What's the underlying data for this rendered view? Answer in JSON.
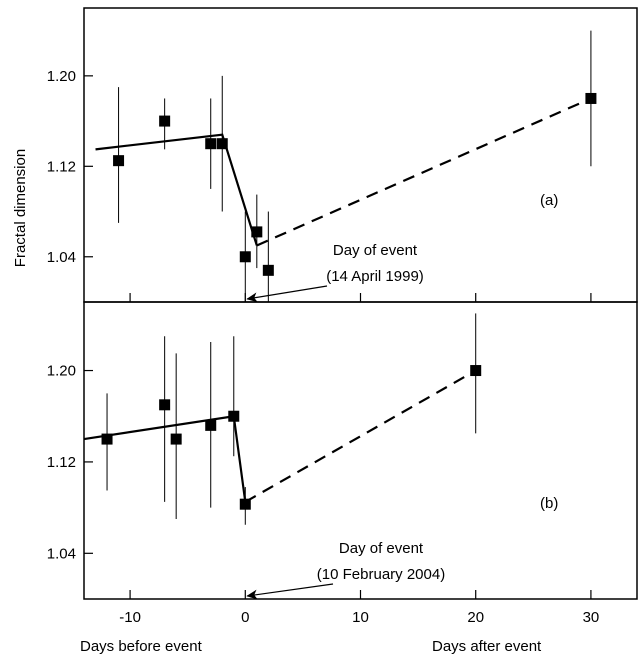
{
  "chart_data": [
    {
      "type": "scatter",
      "panel_label": "(a)",
      "xlim": [
        -14,
        34
      ],
      "ylim": [
        1.0,
        1.26
      ],
      "yticks": [
        1.04,
        1.12,
        1.2
      ],
      "yticklabels": [
        "1.04",
        "1.12",
        "1.20"
      ],
      "points": [
        {
          "x": -11,
          "y": 1.125,
          "ylow": 1.07,
          "yhigh": 1.19
        },
        {
          "x": -7,
          "y": 1.16,
          "ylow": 1.135,
          "yhigh": 1.18
        },
        {
          "x": -3,
          "y": 1.14,
          "ylow": 1.1,
          "yhigh": 1.18
        },
        {
          "x": -2,
          "y": 1.14,
          "ylow": 1.08,
          "yhigh": 1.2
        },
        {
          "x": 0,
          "y": 1.04,
          "ylow": 1.0,
          "yhigh": 1.08
        },
        {
          "x": 1,
          "y": 1.062,
          "ylow": 1.03,
          "yhigh": 1.095
        },
        {
          "x": 2,
          "y": 1.028,
          "ylow": 1.0,
          "yhigh": 1.08
        },
        {
          "x": 30,
          "y": 1.18,
          "ylow": 1.12,
          "yhigh": 1.24
        }
      ],
      "fit_solid": [
        [
          -13,
          1.135
        ],
        [
          -2,
          1.148
        ],
        [
          1,
          1.05
        ]
      ],
      "fit_dashed": [
        [
          1,
          1.05
        ],
        [
          30,
          1.18
        ]
      ],
      "annotation": {
        "line1": "Day of event",
        "line2": "(14  April 1999)",
        "arrow_to": [
          0,
          1.0
        ]
      }
    },
    {
      "type": "scatter",
      "panel_label": "(b)",
      "xlim": [
        -14,
        34
      ],
      "ylim": [
        1.0,
        1.26
      ],
      "yticks": [
        1.04,
        1.12,
        1.2
      ],
      "yticklabels": [
        "1.04",
        "1.12",
        "1.20"
      ],
      "points": [
        {
          "x": -12,
          "y": 1.14,
          "ylow": 1.095,
          "yhigh": 1.18
        },
        {
          "x": -7,
          "y": 1.17,
          "ylow": 1.085,
          "yhigh": 1.23
        },
        {
          "x": -6,
          "y": 1.14,
          "ylow": 1.07,
          "yhigh": 1.215
        },
        {
          "x": -3,
          "y": 1.152,
          "ylow": 1.08,
          "yhigh": 1.225
        },
        {
          "x": -1,
          "y": 1.16,
          "ylow": 1.125,
          "yhigh": 1.23
        },
        {
          "x": 0,
          "y": 1.083,
          "ylow": 1.065,
          "yhigh": 1.098
        },
        {
          "x": 20,
          "y": 1.2,
          "ylow": 1.145,
          "yhigh": 1.25
        }
      ],
      "fit_solid": [
        [
          -14,
          1.14
        ],
        [
          -1,
          1.16
        ],
        [
          0,
          1.085
        ]
      ],
      "fit_dashed": [
        [
          0,
          1.085
        ],
        [
          20,
          1.2
        ]
      ],
      "annotation": {
        "line1": "Day of event",
        "line2": "(10 February 2004)",
        "arrow_to": [
          0,
          1.0
        ]
      }
    }
  ],
  "shared": {
    "ylabel": "Fractal dimension",
    "xticks": [
      -10,
      0,
      10,
      20,
      30
    ],
    "xticklabels": [
      "-10",
      "0",
      "10",
      "20",
      "30"
    ],
    "xlabel_left": "Days before event",
    "xlabel_right": "Days after event"
  }
}
